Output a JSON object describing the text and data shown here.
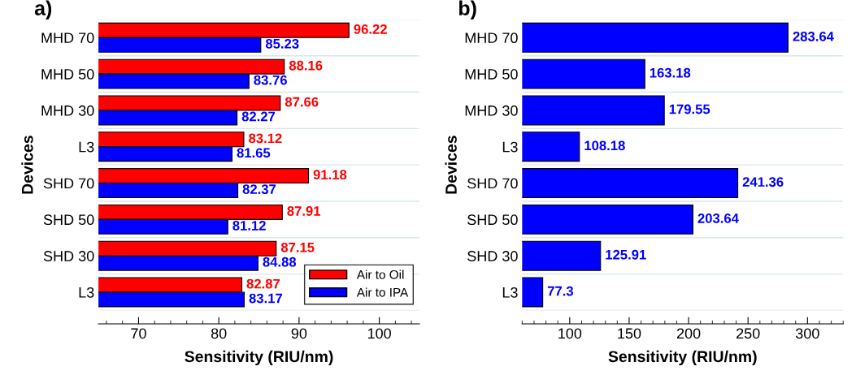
{
  "chart_data": [
    {
      "type": "bar",
      "orientation": "horizontal",
      "title": "a)",
      "ylabel": "Devices",
      "xlabel": "Sensitivity (RIU/nm)",
      "categories": [
        "MHD 70",
        "MHD 50",
        "MHD 30",
        "L3",
        "SHD 70",
        "SHD 50",
        "SHD 30",
        "L3"
      ],
      "series": [
        {
          "name": "Air to Oil",
          "color": "#ff0000",
          "values": [
            96.22,
            88.16,
            87.66,
            83.12,
            91.18,
            87.91,
            87.15,
            82.87
          ]
        },
        {
          "name": "Air to IPA",
          "color": "#0000ff",
          "values": [
            85.23,
            83.76,
            82.27,
            81.65,
            82.37,
            81.12,
            84.88,
            83.17
          ]
        }
      ],
      "xlim": [
        65,
        105
      ],
      "xticks": [
        70,
        80,
        90,
        100
      ],
      "data_labels": true,
      "grid": "y",
      "legend": "bottom right"
    },
    {
      "type": "bar",
      "orientation": "horizontal",
      "title": "b)",
      "ylabel": "Devices",
      "xlabel": "Sensitivity (RIU/nm)",
      "categories": [
        "MHD 70",
        "MHD 50",
        "MHD 30",
        "L3",
        "SHD 70",
        "SHD 50",
        "SHD 30",
        "L3"
      ],
      "series": [
        {
          "color": "#0000ff",
          "values": [
            283.64,
            163.18,
            179.55,
            108.18,
            241.36,
            203.64,
            125.91,
            77.3
          ]
        }
      ],
      "xlim": [
        60,
        330
      ],
      "xticks": [
        100,
        150,
        200,
        250,
        300
      ],
      "data_labels": true,
      "grid": "y"
    }
  ]
}
